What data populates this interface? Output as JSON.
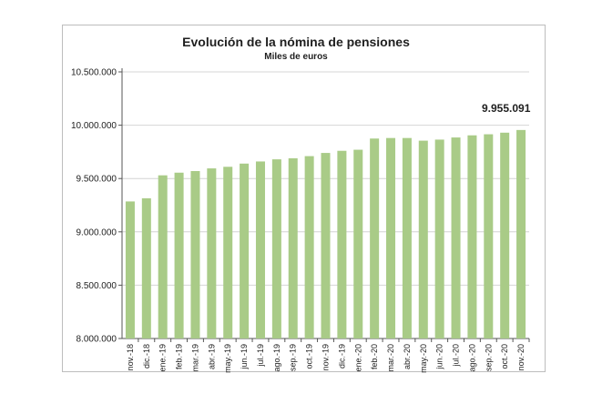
{
  "chart_data": {
    "type": "bar",
    "title": "Evolución de la nómina de pensiones",
    "subtitle": "Miles de euros",
    "annotation": "9.955.091",
    "categories": [
      "nov.-18",
      "dic.-18",
      "ene.-19",
      "feb.-19",
      "mar.-19",
      "abr.-19",
      "may.-19",
      "jun.-19",
      "jul.-19",
      "ago.-19",
      "sep.-19",
      "oct.-19",
      "nov.-19",
      "dic.-19",
      "ene.-20",
      "feb.-20",
      "mar.-20",
      "abr.-20",
      "may.-20",
      "jun.-20",
      "jul.-20",
      "ago.-20",
      "sep.-20",
      "oct.-20",
      "nov.-20"
    ],
    "values": [
      9285000,
      9315000,
      9530000,
      9555000,
      9570000,
      9595000,
      9610000,
      9640000,
      9660000,
      9680000,
      9690000,
      9710000,
      9740000,
      9760000,
      9770000,
      9875000,
      9880000,
      9880000,
      9855000,
      9865000,
      9885000,
      9905000,
      9915000,
      9930000,
      9955091
    ],
    "yticks": [
      "8.000.000",
      "8.500.000",
      "9.000.000",
      "9.500.000",
      "10.000.000",
      "10.500.000"
    ],
    "ytick_values": [
      8000000,
      8500000,
      9000000,
      9500000,
      10000000,
      10500000
    ],
    "ylim": [
      8000000,
      10500000
    ],
    "grid": true,
    "bar_color": "#a9cb87",
    "grid_color": "#d4d4d4"
  }
}
